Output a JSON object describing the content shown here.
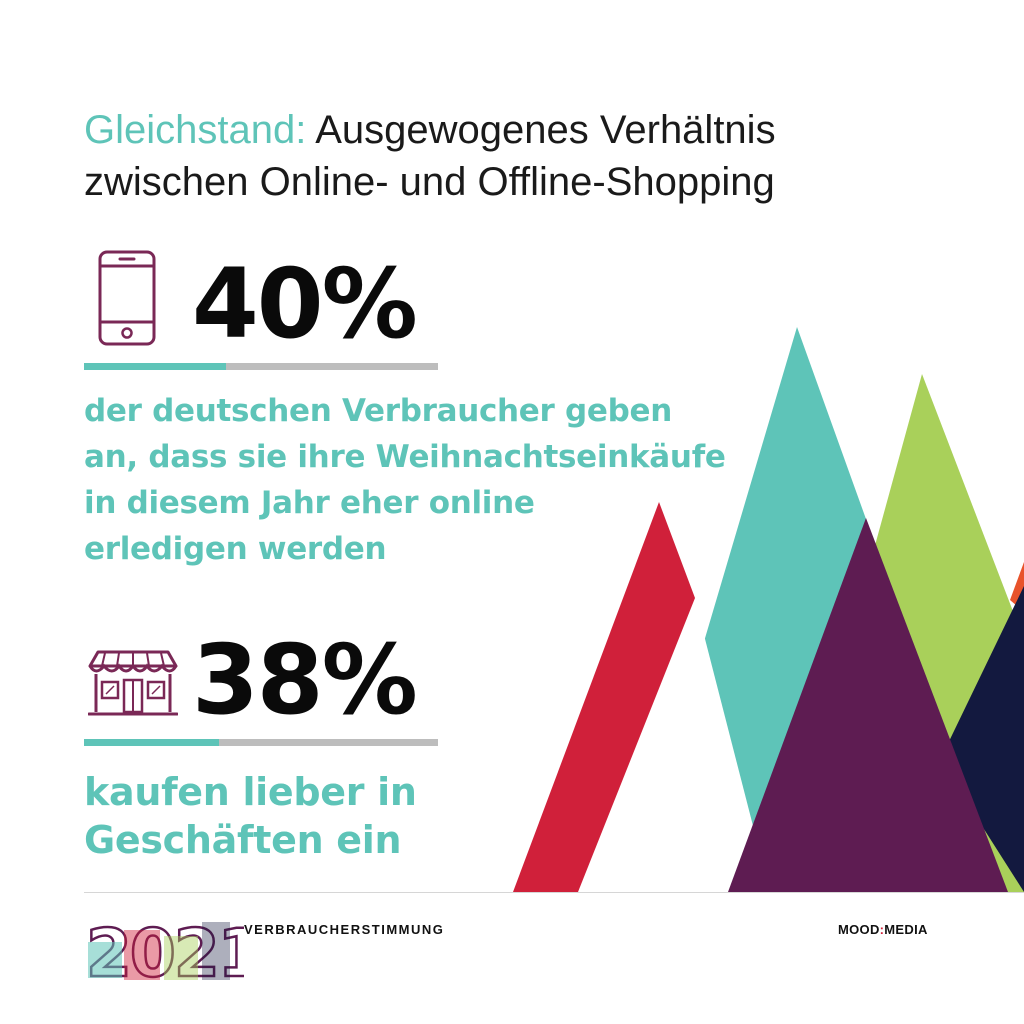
{
  "headline": {
    "accent": "Gleichstand:",
    "line1_rest": " Ausgewogenes Verhältnis",
    "line2": "zwischen Online- und Offline-Shopping"
  },
  "stats": [
    {
      "value": "40%",
      "icon": "smartphone-icon",
      "bar_fraction": 0.4,
      "description_lines": [
        "der deutschen Verbraucher geben",
        "an, dass sie ihre Weihnachtseinkäufe",
        "in diesem Jahr eher online",
        "erledigen werden"
      ]
    },
    {
      "value": "38%",
      "icon": "storefront-icon",
      "bar_fraction": 0.38,
      "description_lines": [
        "kaufen lieber in",
        "Geschäften ein"
      ]
    }
  ],
  "footer": {
    "year": "2021",
    "label": "VERBRAUCHERSTIMMUNG",
    "brand_left": "MOOD",
    "brand_colon": ":",
    "brand_right": "MEDIA"
  },
  "colors": {
    "accent": "#5ec4b8",
    "icon": "#7a2856",
    "red": "#d0203a",
    "purple": "#5e1c52",
    "green": "#a9d05a",
    "navy": "#13193f",
    "orange": "#e8532b"
  }
}
